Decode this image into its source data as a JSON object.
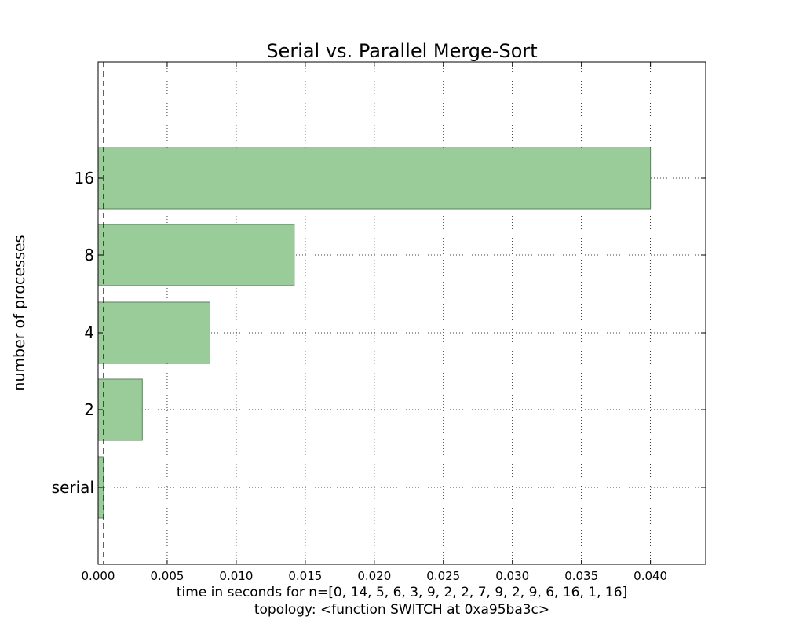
{
  "chart_data": {
    "type": "bar",
    "orientation": "horizontal",
    "title": "Serial vs. Parallel Merge-Sort",
    "xlabel_lines": [
      "time in seconds for n=[0, 14, 5, 6, 3, 9, 2, 2, 7, 9, 2, 9, 6, 16, 1, 16]",
      "topology: <function SWITCH at 0xa95ba3c>"
    ],
    "ylabel": "number of processes",
    "categories": [
      "serial",
      "2",
      "4",
      "8",
      "16"
    ],
    "values": [
      0.0004,
      0.0032,
      0.0081,
      0.0142,
      0.04
    ],
    "reference_line_x": 0.0004,
    "xlim": [
      0.0,
      0.044
    ],
    "xticks": [
      0.0,
      0.005,
      0.01,
      0.015,
      0.02,
      0.025,
      0.03,
      0.035,
      0.04
    ],
    "xtick_labels": [
      "0.000",
      "0.005",
      "0.010",
      "0.015",
      "0.020",
      "0.025",
      "0.030",
      "0.035",
      "0.040"
    ],
    "grid": true,
    "bar_color": "#99cc99",
    "bar_edge_color": "#5e7f5e"
  }
}
